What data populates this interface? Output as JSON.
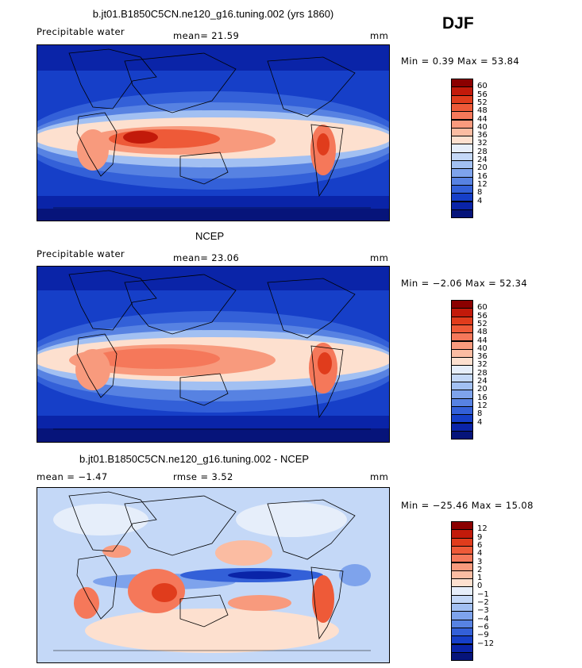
{
  "season": "DJF",
  "panels": [
    {
      "title": "b.jt01.B1850C5CN.ne120_g16.tuning.002 (yrs 1860)",
      "left_label": "Precipitable water",
      "center_label": "mean=   21.59",
      "units": "mm",
      "minmax": "Min =    0.39  Max =   53.84",
      "colorbar": {
        "colors": [
          "#8b0000",
          "#c21a0a",
          "#e03c1c",
          "#ee5a38",
          "#f5785a",
          "#f89a7d",
          "#fbbca2",
          "#fde0cf",
          "#e6eefa",
          "#c4d8f7",
          "#a2c0f2",
          "#7ea3ec",
          "#5782e2",
          "#3360d8",
          "#163fc8",
          "#0a24a8",
          "#06147a"
        ],
        "ticks": [
          "60",
          "56",
          "52",
          "48",
          "44",
          "40",
          "36",
          "32",
          "28",
          "24",
          "20",
          "16",
          "12",
          "8",
          "4"
        ],
        "domain": [
          60,
          4
        ]
      }
    },
    {
      "title": "NCEP",
      "left_label": "Precipitable water",
      "center_label": "mean=   23.06",
      "units": "mm",
      "minmax": "Min =   −2.06  Max =   52.34",
      "colorbar": {
        "colors": [
          "#8b0000",
          "#c21a0a",
          "#e03c1c",
          "#ee5a38",
          "#f5785a",
          "#f89a7d",
          "#fbbca2",
          "#fde0cf",
          "#e6eefa",
          "#c4d8f7",
          "#a2c0f2",
          "#7ea3ec",
          "#5782e2",
          "#3360d8",
          "#163fc8",
          "#0a24a8",
          "#06147a"
        ],
        "ticks": [
          "60",
          "56",
          "52",
          "48",
          "44",
          "40",
          "36",
          "32",
          "28",
          "24",
          "20",
          "16",
          "12",
          "8",
          "4"
        ],
        "domain": [
          60,
          4
        ]
      }
    },
    {
      "title": "b.jt01.B1850C5CN.ne120_g16.tuning.002 - NCEP",
      "left_label": "mean =   −1.47",
      "center_label": "rmse =    3.52",
      "units": "mm",
      "minmax": "Min =  −25.46  Max =   15.08",
      "colorbar": {
        "colors": [
          "#8b0000",
          "#c21a0a",
          "#e03c1c",
          "#ee5a38",
          "#f5785a",
          "#f89a7d",
          "#fbbca2",
          "#fde0cf",
          "#e6eefa",
          "#c4d8f7",
          "#a2c0f2",
          "#7ea3ec",
          "#5782e2",
          "#3360d8",
          "#163fc8",
          "#0a24a8",
          "#06147a"
        ],
        "ticks": [
          "12",
          "9",
          "6",
          "4",
          "3",
          "2",
          "1",
          "0",
          "−1",
          "−2",
          "−3",
          "−4",
          "−6",
          "−9",
          "−12"
        ],
        "domain": [
          12,
          -12
        ]
      }
    }
  ]
}
